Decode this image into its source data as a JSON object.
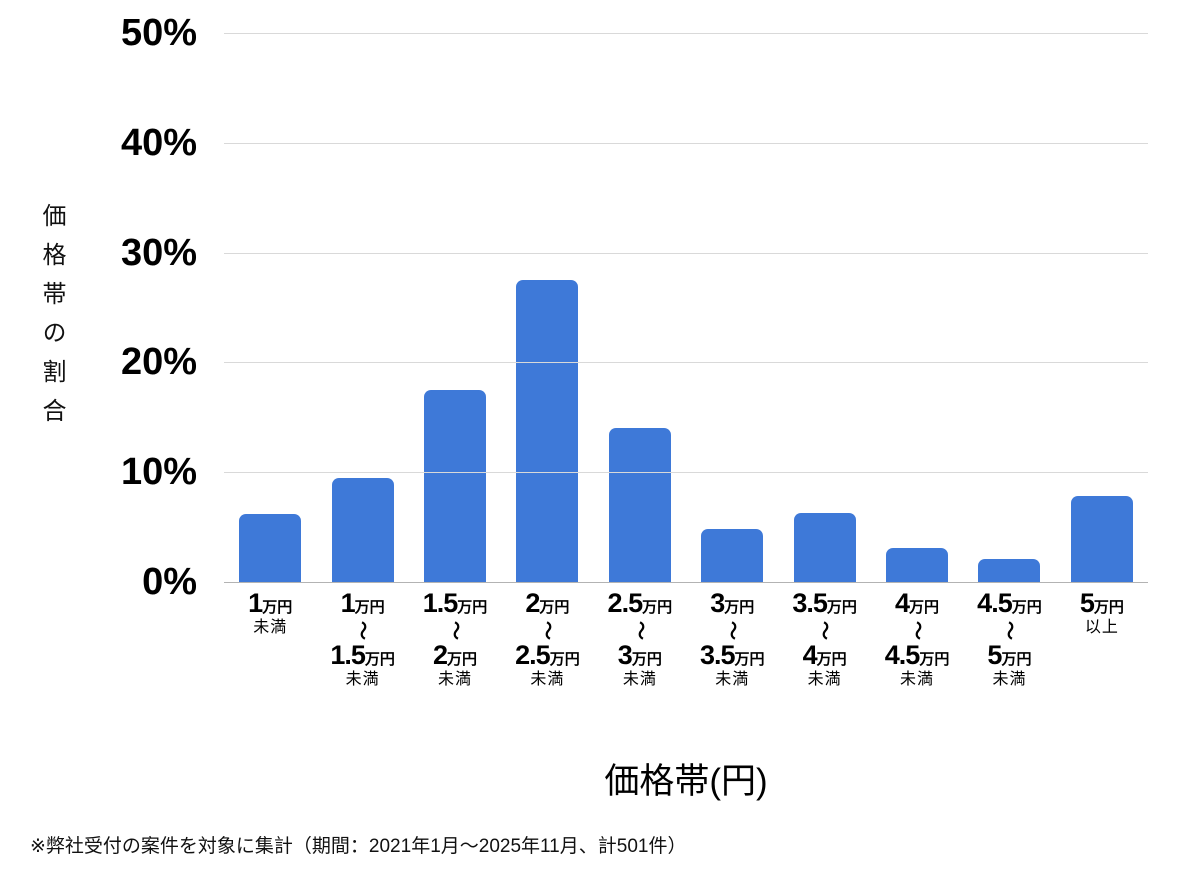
{
  "chart_data": {
    "type": "bar",
    "title": "",
    "xlabel": "価格帯(円)",
    "ylabel": "価格帯の割合",
    "ylim": [
      0,
      50
    ],
    "grid": true,
    "legend": false,
    "ytick_labels": [
      "50%",
      "40%",
      "30%",
      "20%",
      "10%",
      "0%"
    ],
    "categories": [
      "1万円未満",
      "1万円～1.5万円未満",
      "1.5万円～2万円未満",
      "2万円～2.5万円未満",
      "2.5万円～3万円未満",
      "3万円～3.5万円未満",
      "3.5万円～4万円未満",
      "4万円～4.5万円未満",
      "4.5万円～5万円未満",
      "5万円以上"
    ],
    "values": [
      6.2,
      9.5,
      17.5,
      27.5,
      14.0,
      4.8,
      6.3,
      3.1,
      2.1,
      7.8
    ],
    "bar_labels": [
      {
        "from": "1",
        "to": null,
        "unit": "万円",
        "tilde": "",
        "qualifier": "未満"
      },
      {
        "from": "1",
        "to": "1.5",
        "unit": "万円",
        "tilde": "～",
        "qualifier": "未満"
      },
      {
        "from": "1.5",
        "to": "2",
        "unit": "万円",
        "tilde": "～",
        "qualifier": "未満"
      },
      {
        "from": "2",
        "to": "2.5",
        "unit": "万円",
        "tilde": "～",
        "qualifier": "未満"
      },
      {
        "from": "2.5",
        "to": "3",
        "unit": "万円",
        "tilde": "～",
        "qualifier": "未満"
      },
      {
        "from": "3",
        "to": "3.5",
        "unit": "万円",
        "tilde": "～",
        "qualifier": "未満"
      },
      {
        "from": "3.5",
        "to": "4",
        "unit": "万円",
        "tilde": "～",
        "qualifier": "未満"
      },
      {
        "from": "4",
        "to": "4.5",
        "unit": "万円",
        "tilde": "～",
        "qualifier": "未満"
      },
      {
        "from": "4.5",
        "to": "5",
        "unit": "万円",
        "tilde": "～",
        "qualifier": "未満"
      },
      {
        "from": "5",
        "to": null,
        "unit": "万円",
        "tilde": "",
        "qualifier": "以上"
      }
    ],
    "colors": {
      "bar": "#3e79d8",
      "gridline": "#d9d9d9",
      "axis_line": "#b3b3b3",
      "text": "#000000",
      "background": "#ffffff"
    }
  },
  "footnote": "※弊社受付の案件を対象に集計（期間：2021年1月～2025年11月、計501件）"
}
